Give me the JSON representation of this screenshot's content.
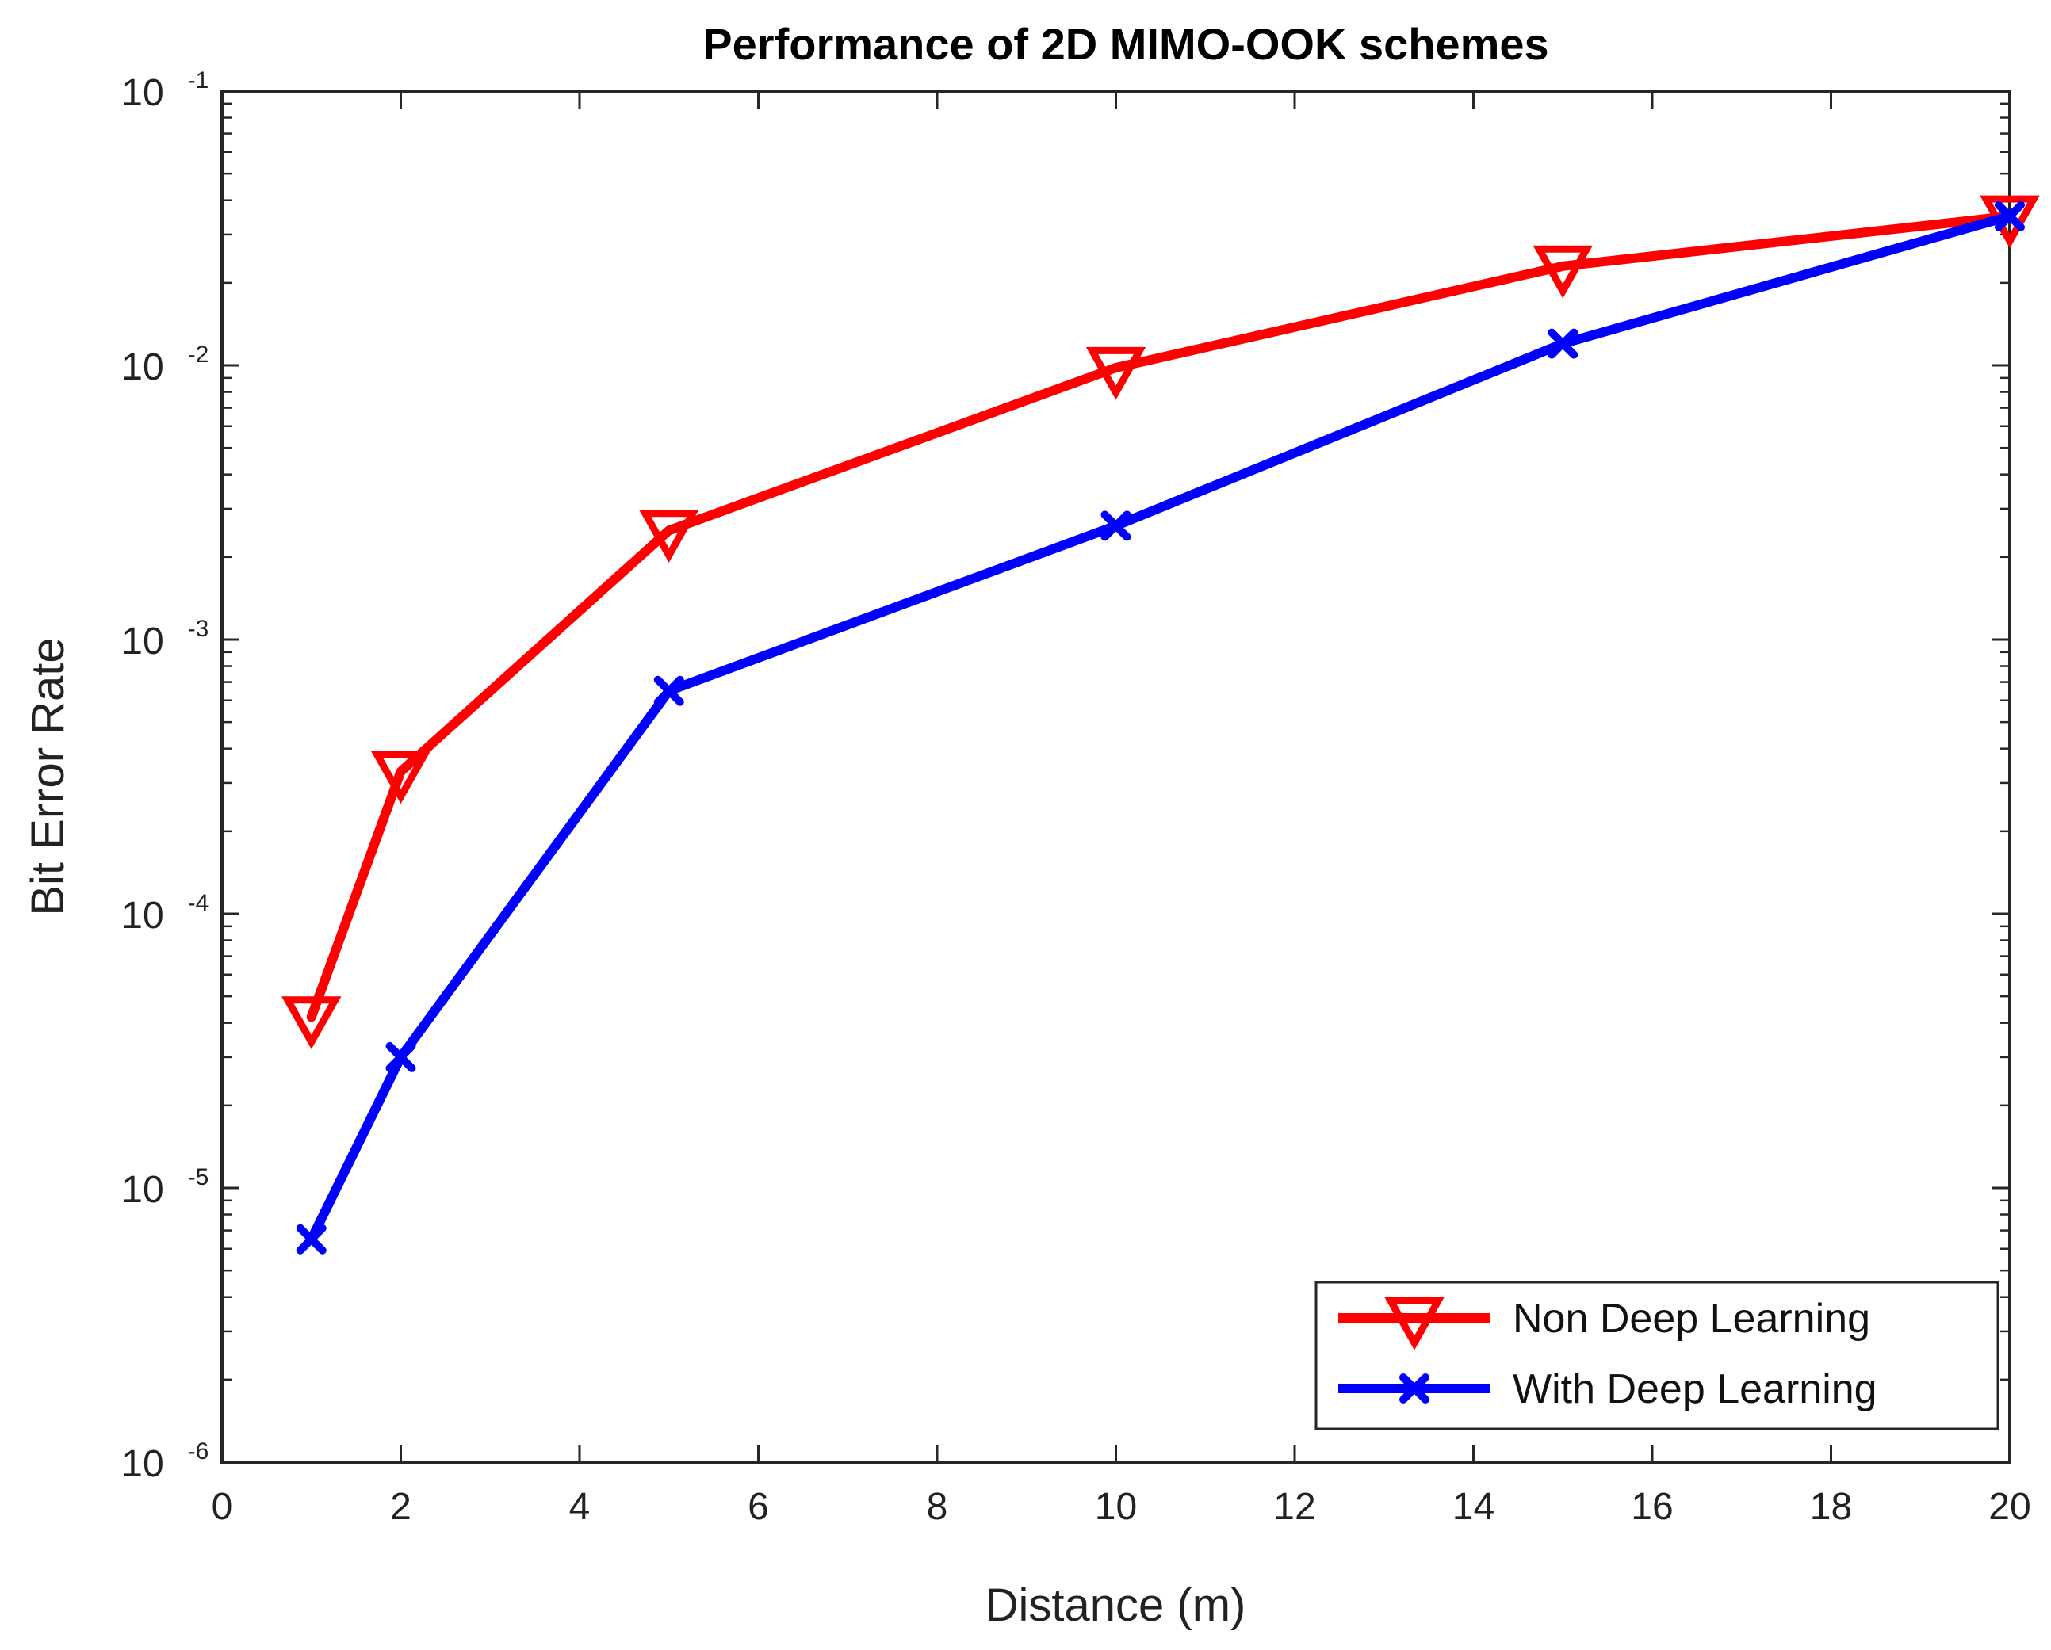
{
  "chart_data": {
    "type": "line",
    "title": "Performance of 2D MIMO-OOK schemes",
    "xlabel": "Distance (m)",
    "ylabel": "Bit Error Rate",
    "xlim": [
      0,
      20
    ],
    "ylim": [
      1e-06,
      0.1
    ],
    "yscale": "log",
    "x_ticks": [
      0,
      2,
      4,
      6,
      8,
      10,
      12,
      14,
      16,
      18,
      20
    ],
    "y_ticks": [
      {
        "base": "10",
        "exp": "-6",
        "value": 1e-06
      },
      {
        "base": "10",
        "exp": "-5",
        "value": 1e-05
      },
      {
        "base": "10",
        "exp": "-4",
        "value": 0.0001
      },
      {
        "base": "10",
        "exp": "-3",
        "value": 0.001
      },
      {
        "base": "10",
        "exp": "-2",
        "value": 0.01
      },
      {
        "base": "10",
        "exp": "-1",
        "value": 0.1
      }
    ],
    "grid": false,
    "legend_position": "bottom-right",
    "series": [
      {
        "name": "Non Deep Learning",
        "color": "#ff0000",
        "marker": "triangle-down",
        "x": [
          1,
          2,
          5,
          10,
          15,
          20
        ],
        "values": [
          4.2e-05,
          0.00033,
          0.0025,
          0.0098,
          0.023,
          0.035
        ]
      },
      {
        "name": "With Deep Learning",
        "color": "#0000ff",
        "marker": "x",
        "x": [
          1,
          2,
          5,
          10,
          15,
          20
        ],
        "values": [
          6.5e-06,
          3e-05,
          0.00065,
          0.0026,
          0.012,
          0.035
        ]
      }
    ]
  }
}
